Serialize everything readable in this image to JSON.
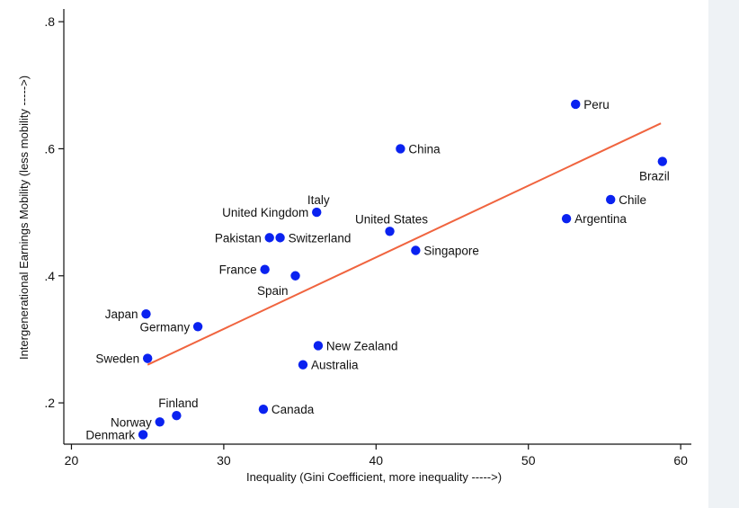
{
  "chart_data": {
    "type": "scatter",
    "title": "",
    "xlabel": "Inequality (Gini Coefficient, more inequality ----->)",
    "ylabel": "Intergenerational Earnings Mobility (less mobility ----->)",
    "xlim": [
      19.5,
      60.7
    ],
    "ylim": [
      0.135,
      0.82
    ],
    "x_ticks": [
      20,
      30,
      40,
      50,
      60
    ],
    "x_tick_labels": [
      "20",
      "30",
      "40",
      "50",
      "60"
    ],
    "y_ticks": [
      0.2,
      0.4,
      0.6,
      0.8
    ],
    "y_tick_labels": [
      ".2",
      ".4",
      ".6",
      ".8"
    ],
    "series": [
      {
        "name": "Countries",
        "points": [
          {
            "label": "Peru",
            "x": 53.1,
            "y": 0.67,
            "anchor": "right"
          },
          {
            "label": "China",
            "x": 41.6,
            "y": 0.6,
            "anchor": "right"
          },
          {
            "label": "Brazil",
            "x": 58.8,
            "y": 0.58,
            "anchor": "below-right"
          },
          {
            "label": "Chile",
            "x": 55.4,
            "y": 0.52,
            "anchor": "right"
          },
          {
            "label": "Italy",
            "x": 36.1,
            "y": 0.5,
            "anchor": "above"
          },
          {
            "label": "United Kingdom",
            "x": 36.1,
            "y": 0.5,
            "anchor": "left"
          },
          {
            "label": "Argentina",
            "x": 52.5,
            "y": 0.49,
            "anchor": "right"
          },
          {
            "label": "United States",
            "x": 40.9,
            "y": 0.47,
            "anchor": "above"
          },
          {
            "label": "Pakistan",
            "x": 33.0,
            "y": 0.46,
            "anchor": "left"
          },
          {
            "label": "Switzerland",
            "x": 33.7,
            "y": 0.46,
            "anchor": "right"
          },
          {
            "label": "Singapore",
            "x": 42.6,
            "y": 0.44,
            "anchor": "right"
          },
          {
            "label": "France",
            "x": 32.7,
            "y": 0.41,
            "anchor": "left"
          },
          {
            "label": "Spain",
            "x": 34.7,
            "y": 0.4,
            "anchor": "below-left"
          },
          {
            "label": "Japan",
            "x": 24.9,
            "y": 0.34,
            "anchor": "left"
          },
          {
            "label": "Germany",
            "x": 28.3,
            "y": 0.32,
            "anchor": "left"
          },
          {
            "label": "New Zealand",
            "x": 36.2,
            "y": 0.29,
            "anchor": "right"
          },
          {
            "label": "Sweden",
            "x": 25.0,
            "y": 0.27,
            "anchor": "left"
          },
          {
            "label": "Australia",
            "x": 35.2,
            "y": 0.26,
            "anchor": "right"
          },
          {
            "label": "Canada",
            "x": 32.6,
            "y": 0.19,
            "anchor": "right"
          },
          {
            "label": "Finland",
            "x": 26.9,
            "y": 0.18,
            "anchor": "above"
          },
          {
            "label": "Norway",
            "x": 25.8,
            "y": 0.17,
            "anchor": "left"
          },
          {
            "label": "Denmark",
            "x": 24.7,
            "y": 0.15,
            "anchor": "left"
          }
        ]
      }
    ],
    "fit_line": {
      "name": "Fitted values",
      "x": [
        25.0,
        58.7
      ],
      "y": [
        0.26,
        0.64
      ]
    },
    "point_color": "#0a22f0",
    "line_color": "#f0643f",
    "grid": false,
    "legend": "none"
  }
}
